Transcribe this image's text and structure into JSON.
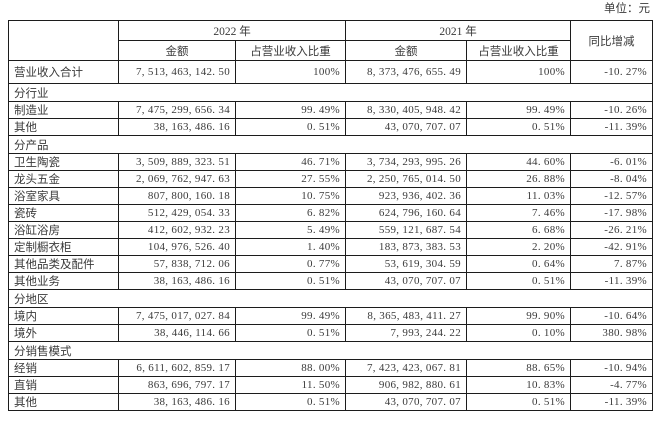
{
  "unit_label": "单位：元",
  "table": {
    "header": {
      "year_2022": "2022 年",
      "year_2021": "2021 年",
      "yoy": "同比增减",
      "amount_2022": "金额",
      "proportion_2022": "占营业收入比重",
      "amount_2021": "金额",
      "proportion_2021": "占营业收入比重"
    },
    "rows": [
      {
        "type": "total",
        "label": "营业收入合计",
        "a2022": "7,513,463,142.50",
        "p2022": "100%",
        "a2021": "8,373,476,655.49",
        "p2021": "100%",
        "yoy": "-10.27%"
      },
      {
        "type": "section",
        "label": "分行业"
      },
      {
        "type": "data",
        "label": "制造业",
        "a2022": "7,475,299,656.34",
        "p2022": "99.49%",
        "a2021": "8,330,405,948.42",
        "p2021": "99.49%",
        "yoy": "-10.26%"
      },
      {
        "type": "data",
        "label": "其他",
        "a2022": "38,163,486.16",
        "p2022": "0.51%",
        "a2021": "43,070,707.07",
        "p2021": "0.51%",
        "yoy": "-11.39%"
      },
      {
        "type": "section",
        "label": "分产品"
      },
      {
        "type": "data",
        "label": "卫生陶瓷",
        "a2022": "3,509,889,323.51",
        "p2022": "46.71%",
        "a2021": "3,734,293,995.26",
        "p2021": "44.60%",
        "yoy": "-6.01%"
      },
      {
        "type": "data",
        "label": "龙头五金",
        "a2022": "2,069,762,947.63",
        "p2022": "27.55%",
        "a2021": "2,250,765,014.50",
        "p2021": "26.88%",
        "yoy": "-8.04%"
      },
      {
        "type": "data",
        "label": "浴室家具",
        "a2022": "807,800,160.18",
        "p2022": "10.75%",
        "a2021": "923,936,402.36",
        "p2021": "11.03%",
        "yoy": "-12.57%"
      },
      {
        "type": "data",
        "label": "瓷砖",
        "a2022": "512,429,054.33",
        "p2022": "6.82%",
        "a2021": "624,796,160.64",
        "p2021": "7.46%",
        "yoy": "-17.98%"
      },
      {
        "type": "data",
        "label": "浴缸浴房",
        "a2022": "412,602,932.23",
        "p2022": "5.49%",
        "a2021": "559,121,687.54",
        "p2021": "6.68%",
        "yoy": "-26.21%"
      },
      {
        "type": "data",
        "label": "定制橱衣柜",
        "a2022": "104,976,526.40",
        "p2022": "1.40%",
        "a2021": "183,873,383.53",
        "p2021": "2.20%",
        "yoy": "-42.91%"
      },
      {
        "type": "data",
        "label": "其他品类及配件",
        "a2022": "57,838,712.06",
        "p2022": "0.77%",
        "a2021": "53,619,304.59",
        "p2021": "0.64%",
        "yoy": "7.87%"
      },
      {
        "type": "data",
        "label": "其他业务",
        "a2022": "38,163,486.16",
        "p2022": "0.51%",
        "a2021": "43,070,707.07",
        "p2021": "0.51%",
        "yoy": "-11.39%"
      },
      {
        "type": "section",
        "label": "分地区"
      },
      {
        "type": "data",
        "label": "境内",
        "a2022": "7,475,017,027.84",
        "p2022": "99.49%",
        "a2021": "8,365,483,411.27",
        "p2021": "99.90%",
        "yoy": "-10.64%"
      },
      {
        "type": "data",
        "label": "境外",
        "a2022": "38,446,114.66",
        "p2022": "0.51%",
        "a2021": "7,993,244.22",
        "p2021": "0.10%",
        "yoy": "380.98%"
      },
      {
        "type": "section",
        "label": "分销售模式"
      },
      {
        "type": "data",
        "label": "经销",
        "a2022": "6,611,602,859.17",
        "p2022": "88.00%",
        "a2021": "7,423,423,067.81",
        "p2021": "88.65%",
        "yoy": "-10.94%"
      },
      {
        "type": "data",
        "label": "直销",
        "a2022": "863,696,797.17",
        "p2022": "11.50%",
        "a2021": "906,982,880.61",
        "p2021": "10.83%",
        "yoy": "-4.77%"
      },
      {
        "type": "data",
        "label": "其他",
        "a2022": "38,163,486.16",
        "p2022": "0.51%",
        "a2021": "43,070,707.07",
        "p2021": "0.51%",
        "yoy": "-11.39%"
      }
    ]
  }
}
